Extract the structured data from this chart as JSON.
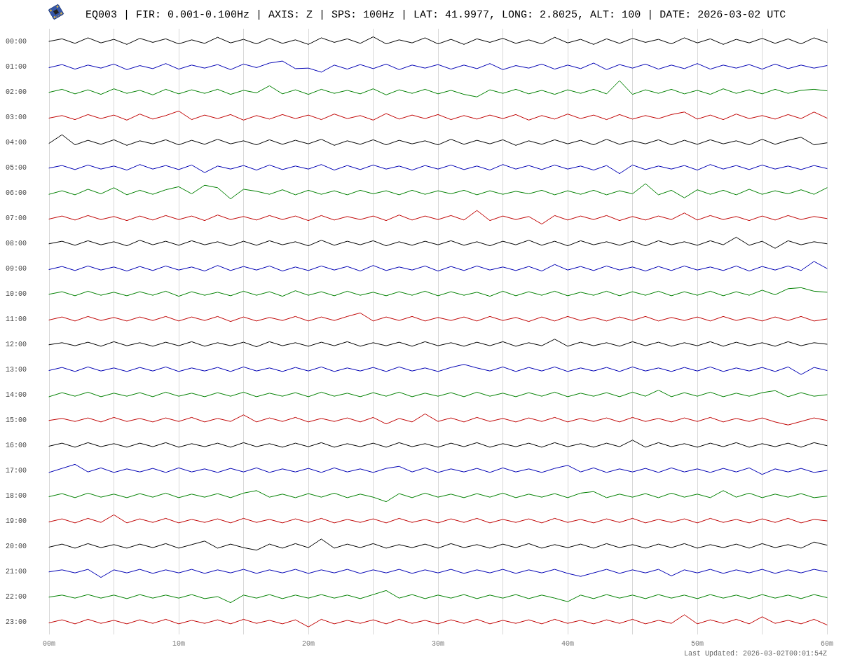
{
  "chart_data": {
    "type": "line",
    "title": "EQ003 | FIR: 0.001-0.100Hz | AXIS: Z | SPS: 100Hz | LAT: 41.9977, LONG: 2.8025, ALT: 100 | DATE: 2026-03-02 UTC",
    "annotations": [
      "Last Updated: 2026-03-02T00:01:54Z"
    ],
    "x": [
      0,
      1,
      2,
      3,
      4,
      5,
      6,
      7,
      8,
      9,
      10,
      11,
      12,
      13,
      14,
      15,
      16,
      17,
      18,
      19,
      20,
      21,
      22,
      23,
      24,
      25,
      26,
      27,
      28,
      29,
      30,
      31,
      32,
      33,
      34,
      35,
      36,
      37,
      38,
      39,
      40,
      41,
      42,
      43,
      44,
      45,
      46,
      47,
      48,
      49,
      50,
      51,
      52,
      53,
      54,
      55,
      56,
      57,
      58,
      59,
      60
    ],
    "xlim": [
      0,
      60
    ],
    "xticks": [
      {
        "value": 0,
        "label": "00m"
      },
      {
        "value": 5,
        "label": null
      },
      {
        "value": 10,
        "label": "10m"
      },
      {
        "value": 15,
        "label": null
      },
      {
        "value": 20,
        "label": "20m"
      },
      {
        "value": 25,
        "label": null
      },
      {
        "value": 30,
        "label": "30m"
      },
      {
        "value": 35,
        "label": null
      },
      {
        "value": 40,
        "label": "40m"
      },
      {
        "value": 45,
        "label": null
      },
      {
        "value": 50,
        "label": "50m"
      },
      {
        "value": 55,
        "label": null
      },
      {
        "value": 60,
        "label": "60m"
      }
    ],
    "ylim": [
      23.5,
      -0.5
    ],
    "yticks": [
      {
        "value": 0,
        "label": "00:00"
      },
      {
        "value": 1,
        "label": "01:00"
      },
      {
        "value": 2,
        "label": "02:00"
      },
      {
        "value": 3,
        "label": "03:00"
      },
      {
        "value": 4,
        "label": "04:00"
      },
      {
        "value": 5,
        "label": "05:00"
      },
      {
        "value": 6,
        "label": "06:00"
      },
      {
        "value": 7,
        "label": "07:00"
      },
      {
        "value": 8,
        "label": "08:00"
      },
      {
        "value": 9,
        "label": "09:00"
      },
      {
        "value": 10,
        "label": "10:00"
      },
      {
        "value": 11,
        "label": "11:00"
      },
      {
        "value": 12,
        "label": "12:00"
      },
      {
        "value": 13,
        "label": "13:00"
      },
      {
        "value": 14,
        "label": "14:00"
      },
      {
        "value": 15,
        "label": "15:00"
      },
      {
        "value": 16,
        "label": "16:00"
      },
      {
        "value": 17,
        "label": "17:00"
      },
      {
        "value": 18,
        "label": "18:00"
      },
      {
        "value": 19,
        "label": "19:00"
      },
      {
        "value": 20,
        "label": "20:00"
      },
      {
        "value": 21,
        "label": "21:00"
      },
      {
        "value": 22,
        "label": "22:00"
      },
      {
        "value": 23,
        "label": "23:00"
      }
    ],
    "grid": "x",
    "line_style": "solid",
    "series": [
      {
        "color": "#000000",
        "values": [
          0,
          -0.1,
          0.08,
          -0.14,
          0.06,
          -0.08,
          0.12,
          -0.12,
          0.04,
          -0.1,
          0.1,
          -0.06,
          0.08,
          -0.16,
          0.06,
          -0.08,
          0.1,
          -0.12,
          0.08,
          -0.06,
          0.12,
          -0.14,
          0.04,
          -0.1,
          0.08,
          -0.18,
          0.1,
          -0.06,
          0.06,
          -0.14,
          0.1,
          -0.08,
          0.12,
          -0.1,
          0.04,
          -0.12,
          0.08,
          -0.06,
          0.1,
          -0.16,
          0.06,
          -0.08,
          0.12,
          -0.1,
          0.08,
          -0.12,
          0.04,
          -0.08,
          0.1,
          -0.14,
          0.06,
          -0.1,
          0.12,
          -0.08,
          0.06,
          -0.12,
          0.08,
          -0.1,
          0.1,
          -0.14,
          0.04
        ]
      },
      {
        "color": "#0000b4",
        "values": [
          1.04,
          0.92,
          1.1,
          0.94,
          1.06,
          0.9,
          1.12,
          0.96,
          1.08,
          0.88,
          1.1,
          0.94,
          1.06,
          0.92,
          1.12,
          0.9,
          1.04,
          0.86,
          0.78,
          1.08,
          1.06,
          1.22,
          0.94,
          1.1,
          0.92,
          1.08,
          0.9,
          1.12,
          0.94,
          1.06,
          0.92,
          1.1,
          0.94,
          1.08,
          0.88,
          1.12,
          0.96,
          1.06,
          0.9,
          1.1,
          0.94,
          1.08,
          0.86,
          1.12,
          0.92,
          1.06,
          0.9,
          1.1,
          0.94,
          1.08,
          0.88,
          1.1,
          0.94,
          1.06,
          0.92,
          1.1,
          0.9,
          1.08,
          0.94,
          1.06,
          0.96
        ]
      },
      {
        "color": "#008000",
        "values": [
          2.02,
          1.9,
          2.08,
          1.92,
          2.1,
          1.88,
          2.06,
          1.94,
          2.12,
          1.9,
          2.08,
          1.92,
          2.06,
          1.9,
          2.1,
          1.94,
          2.04,
          1.76,
          2.08,
          1.92,
          2.1,
          1.9,
          2.06,
          1.94,
          2.08,
          1.88,
          2.12,
          1.92,
          2.06,
          1.9,
          2.08,
          1.94,
          2.1,
          2.2,
          1.92,
          2.06,
          1.9,
          2.08,
          1.94,
          2.1,
          1.92,
          2.06,
          1.9,
          2.08,
          1.56,
          2.1,
          1.92,
          2.06,
          1.9,
          2.08,
          1.94,
          2.1,
          1.88,
          2.06,
          1.92,
          2.08,
          1.9,
          2.06,
          1.94,
          1.9,
          1.96
        ]
      },
      {
        "color": "#c00000",
        "values": [
          3.04,
          2.94,
          3.1,
          2.9,
          3.06,
          2.92,
          3.12,
          2.88,
          3.08,
          2.94,
          2.76,
          3.1,
          2.92,
          3.06,
          2.9,
          3.12,
          2.94,
          3.08,
          2.9,
          3.06,
          2.92,
          3.1,
          2.88,
          3.06,
          2.94,
          3.12,
          2.86,
          3.08,
          2.92,
          3.06,
          2.9,
          3.1,
          2.94,
          3.08,
          2.92,
          3.06,
          2.9,
          3.12,
          2.94,
          3.08,
          2.88,
          3.06,
          2.92,
          3.1,
          2.9,
          3.08,
          2.94,
          3.06,
          2.9,
          2.8,
          3.08,
          2.92,
          3.1,
          2.88,
          3.06,
          2.94,
          3.08,
          2.9,
          3.06,
          2.8,
          3.04
        ]
      },
      {
        "color": "#000000",
        "values": [
          4.04,
          3.7,
          4.1,
          3.92,
          4.08,
          3.9,
          4.12,
          3.94,
          4.06,
          3.9,
          4.1,
          3.92,
          4.08,
          3.88,
          4.06,
          3.94,
          4.1,
          3.9,
          4.08,
          3.92,
          4.06,
          3.88,
          4.12,
          3.94,
          4.08,
          3.9,
          4.1,
          3.92,
          4.06,
          3.94,
          4.1,
          3.88,
          4.08,
          3.92,
          4.06,
          3.9,
          4.12,
          3.94,
          4.08,
          3.9,
          4.06,
          3.92,
          4.1,
          3.88,
          4.08,
          3.94,
          4.06,
          3.9,
          4.1,
          3.92,
          4.08,
          3.9,
          4.06,
          3.94,
          4.1,
          3.88,
          4.08,
          3.92,
          3.8,
          4.1,
          4.02
        ]
      },
      {
        "color": "#0000b4",
        "values": [
          5.02,
          4.92,
          5.08,
          4.9,
          5.06,
          4.94,
          5.1,
          4.88,
          5.06,
          4.92,
          5.08,
          4.9,
          5.2,
          4.94,
          5.06,
          4.92,
          5.1,
          4.9,
          5.08,
          4.94,
          5.06,
          4.88,
          5.1,
          4.92,
          5.08,
          4.9,
          5.06,
          4.94,
          5.1,
          4.92,
          5.06,
          4.9,
          5.08,
          4.94,
          5.1,
          4.88,
          5.06,
          4.92,
          5.08,
          4.9,
          5.06,
          4.94,
          5.1,
          4.92,
          5.24,
          4.9,
          5.08,
          4.94,
          5.06,
          4.92,
          5.1,
          4.88,
          5.06,
          4.92,
          5.08,
          4.9,
          5.06,
          4.94,
          5.08,
          4.92,
          5.04
        ]
      },
      {
        "color": "#008000",
        "values": [
          6.06,
          5.92,
          6.08,
          5.86,
          6.04,
          5.8,
          6.08,
          5.9,
          6.06,
          5.88,
          5.76,
          6.04,
          5.7,
          5.8,
          6.24,
          5.86,
          5.94,
          6.06,
          5.88,
          6.08,
          5.9,
          6.06,
          5.92,
          6.08,
          5.9,
          6.04,
          5.92,
          6.08,
          5.9,
          6.06,
          5.92,
          6.04,
          5.9,
          6.08,
          5.92,
          6.06,
          5.94,
          6.04,
          5.9,
          6.08,
          5.92,
          6.06,
          5.9,
          6.08,
          5.92,
          6.04,
          5.64,
          6.08,
          5.9,
          6.2,
          5.88,
          6.06,
          5.9,
          6.08,
          5.86,
          6.06,
          5.92,
          6.04,
          5.88,
          6.06,
          5.8
        ]
      },
      {
        "color": "#c00000",
        "values": [
          7.04,
          6.92,
          7.08,
          6.9,
          7.06,
          6.94,
          7.1,
          6.92,
          7.08,
          6.9,
          7.06,
          6.92,
          7.1,
          6.88,
          7.06,
          6.94,
          7.08,
          6.9,
          7.06,
          6.92,
          7.1,
          6.9,
          7.08,
          6.94,
          7.06,
          6.92,
          7.1,
          6.88,
          7.08,
          6.92,
          7.06,
          6.9,
          7.08,
          6.7,
          7.1,
          6.92,
          7.06,
          6.94,
          7.24,
          6.9,
          7.08,
          6.92,
          7.06,
          6.9,
          7.1,
          6.94,
          7.08,
          6.92,
          7.06,
          6.8,
          7.08,
          6.9,
          7.06,
          6.94,
          7.1,
          6.92,
          7.08,
          6.9,
          7.06,
          6.94,
          7.02
        ]
      },
      {
        "color": "#000000",
        "values": [
          8.02,
          7.92,
          8.08,
          7.9,
          8.06,
          7.94,
          8.1,
          7.88,
          8.06,
          7.92,
          8.08,
          7.9,
          8.06,
          7.94,
          8.1,
          7.92,
          8.08,
          7.9,
          8.06,
          7.94,
          8.1,
          7.88,
          8.08,
          7.92,
          8.06,
          7.9,
          8.1,
          7.94,
          8.08,
          7.92,
          8.06,
          7.9,
          8.08,
          7.94,
          8.1,
          7.92,
          8.06,
          7.88,
          8.08,
          7.92,
          8.1,
          7.9,
          8.06,
          7.94,
          8.08,
          7.92,
          8.1,
          7.9,
          8.06,
          7.94,
          8.08,
          7.9,
          8.06,
          7.76,
          8.08,
          7.92,
          8.2,
          7.9,
          8.06,
          7.94,
          8.02
        ]
      },
      {
        "color": "#0000b4",
        "values": [
          9.04,
          8.92,
          9.08,
          8.9,
          9.06,
          8.94,
          9.1,
          8.92,
          9.08,
          8.9,
          9.06,
          8.94,
          9.1,
          8.88,
          9.08,
          8.92,
          9.06,
          8.9,
          9.1,
          8.94,
          9.08,
          8.9,
          9.06,
          8.92,
          9.1,
          8.88,
          9.08,
          8.94,
          9.06,
          8.9,
          9.1,
          8.92,
          9.08,
          8.9,
          9.06,
          8.94,
          9.08,
          8.92,
          9.1,
          8.84,
          9.06,
          8.92,
          9.08,
          8.9,
          9.06,
          8.94,
          9.1,
          8.92,
          9.08,
          8.9,
          9.06,
          8.94,
          9.08,
          8.9,
          9.1,
          8.92,
          9.06,
          8.9,
          9.08,
          8.72,
          9.0
        ]
      },
      {
        "color": "#008000",
        "values": [
          10.02,
          9.92,
          10.08,
          9.9,
          10.06,
          9.94,
          10.08,
          9.92,
          10.06,
          9.9,
          10.1,
          9.92,
          10.06,
          9.94,
          10.08,
          9.9,
          10.06,
          9.92,
          10.1,
          9.88,
          10.06,
          9.92,
          10.08,
          9.9,
          10.06,
          9.94,
          10.08,
          9.92,
          10.06,
          9.9,
          10.08,
          9.92,
          10.06,
          9.94,
          10.1,
          9.9,
          10.08,
          9.92,
          10.06,
          9.9,
          10.08,
          9.94,
          10.06,
          9.9,
          10.08,
          9.92,
          10.06,
          9.9,
          10.08,
          9.92,
          10.06,
          9.9,
          10.08,
          9.92,
          10.06,
          9.86,
          10.04,
          9.8,
          9.76,
          9.9,
          9.94
        ]
      },
      {
        "color": "#c00000",
        "values": [
          11.04,
          10.92,
          11.08,
          10.9,
          11.06,
          10.94,
          11.08,
          10.92,
          11.06,
          10.9,
          11.08,
          10.92,
          11.06,
          10.9,
          11.1,
          10.92,
          11.08,
          10.94,
          11.06,
          10.9,
          11.08,
          10.92,
          11.06,
          10.9,
          10.76,
          11.08,
          10.92,
          11.06,
          10.9,
          11.08,
          10.94,
          11.06,
          10.92,
          11.08,
          10.9,
          11.06,
          10.94,
          11.1,
          10.92,
          11.08,
          10.9,
          11.06,
          10.94,
          11.08,
          10.92,
          11.06,
          10.9,
          11.08,
          10.94,
          11.06,
          10.92,
          11.08,
          10.9,
          11.06,
          10.94,
          11.08,
          10.92,
          11.06,
          10.9,
          11.08,
          11.0
        ]
      },
      {
        "color": "#000000",
        "values": [
          12.02,
          11.94,
          12.06,
          11.92,
          12.08,
          11.9,
          12.06,
          11.94,
          12.08,
          11.92,
          12.06,
          11.9,
          12.08,
          11.94,
          12.06,
          11.92,
          12.1,
          11.9,
          12.06,
          11.94,
          12.08,
          11.92,
          12.06,
          11.9,
          12.08,
          11.94,
          12.06,
          11.92,
          12.08,
          11.9,
          12.06,
          11.94,
          12.08,
          11.92,
          12.06,
          11.9,
          12.08,
          11.94,
          12.06,
          11.8,
          12.08,
          11.92,
          12.06,
          11.94,
          12.08,
          11.9,
          12.06,
          11.92,
          12.08,
          11.94,
          12.06,
          11.9,
          12.08,
          11.92,
          12.06,
          11.94,
          12.08,
          11.9,
          12.06,
          11.94,
          12.0
        ]
      },
      {
        "color": "#0000b4",
        "values": [
          13.04,
          12.92,
          13.08,
          12.9,
          13.06,
          12.94,
          13.08,
          12.92,
          13.06,
          12.9,
          13.08,
          12.94,
          13.06,
          12.92,
          13.08,
          12.9,
          13.06,
          12.94,
          13.08,
          12.92,
          13.06,
          12.9,
          13.08,
          12.94,
          13.06,
          12.92,
          13.08,
          12.9,
          13.06,
          12.94,
          13.08,
          12.92,
          12.8,
          12.94,
          13.06,
          12.9,
          13.08,
          12.92,
          13.06,
          12.9,
          13.08,
          12.94,
          13.06,
          12.92,
          13.08,
          12.9,
          13.06,
          12.94,
          13.08,
          12.92,
          13.06,
          12.9,
          13.08,
          12.94,
          13.06,
          12.92,
          13.08,
          12.9,
          13.2,
          12.92,
          13.04
        ]
      },
      {
        "color": "#008000",
        "values": [
          14.08,
          13.92,
          14.06,
          13.9,
          14.08,
          13.94,
          14.06,
          13.92,
          14.08,
          13.9,
          14.06,
          13.94,
          14.08,
          13.92,
          14.06,
          13.9,
          14.08,
          13.94,
          14.06,
          13.92,
          14.08,
          13.9,
          14.06,
          13.94,
          14.08,
          13.92,
          14.06,
          13.9,
          14.08,
          13.94,
          14.06,
          13.92,
          14.08,
          13.9,
          14.06,
          13.94,
          14.08,
          13.92,
          14.06,
          13.9,
          14.08,
          13.94,
          14.06,
          13.92,
          14.08,
          13.9,
          14.06,
          13.82,
          14.08,
          13.92,
          14.06,
          13.9,
          14.08,
          13.94,
          14.06,
          13.92,
          13.84,
          14.08,
          13.92,
          14.06,
          14.0
        ]
      },
      {
        "color": "#c00000",
        "values": [
          15.02,
          14.94,
          15.06,
          14.92,
          15.08,
          14.9,
          15.06,
          14.94,
          15.08,
          14.92,
          15.06,
          14.9,
          15.08,
          14.94,
          15.06,
          14.8,
          15.08,
          14.92,
          15.06,
          14.9,
          15.08,
          14.94,
          15.06,
          14.92,
          15.08,
          14.9,
          15.16,
          14.94,
          15.08,
          14.76,
          15.06,
          14.92,
          15.08,
          14.9,
          15.06,
          14.94,
          15.08,
          14.92,
          15.06,
          14.9,
          15.08,
          14.94,
          15.06,
          14.92,
          15.08,
          14.9,
          15.06,
          14.94,
          15.08,
          14.92,
          15.06,
          14.9,
          15.08,
          14.94,
          15.06,
          14.92,
          15.08,
          15.2,
          15.06,
          14.92,
          15.02
        ]
      },
      {
        "color": "#000000",
        "values": [
          16.04,
          15.92,
          16.08,
          15.9,
          16.06,
          15.94,
          16.08,
          15.92,
          16.06,
          15.9,
          16.08,
          15.94,
          16.06,
          15.92,
          16.08,
          15.9,
          16.06,
          15.94,
          16.08,
          15.92,
          16.06,
          15.9,
          16.08,
          15.94,
          16.06,
          15.92,
          16.08,
          15.9,
          16.06,
          15.94,
          16.08,
          15.92,
          16.06,
          15.9,
          16.08,
          15.94,
          16.06,
          15.92,
          16.08,
          15.9,
          16.06,
          15.94,
          16.08,
          15.92,
          16.06,
          15.8,
          16.08,
          15.9,
          16.06,
          15.94,
          16.08,
          15.92,
          16.06,
          15.9,
          16.08,
          15.94,
          16.06,
          15.92,
          16.08,
          15.9,
          16.02
        ]
      },
      {
        "color": "#0000b4",
        "values": [
          17.08,
          16.92,
          16.76,
          17.06,
          16.9,
          17.08,
          16.94,
          17.06,
          16.92,
          17.08,
          16.9,
          17.06,
          16.94,
          17.08,
          16.92,
          17.06,
          16.9,
          17.08,
          16.94,
          17.06,
          16.92,
          17.08,
          16.9,
          17.06,
          16.94,
          17.08,
          16.92,
          16.84,
          17.06,
          16.9,
          17.08,
          16.94,
          17.06,
          16.92,
          17.08,
          16.9,
          17.06,
          16.94,
          17.08,
          16.92,
          16.8,
          17.06,
          16.9,
          17.08,
          16.94,
          17.06,
          16.92,
          17.08,
          16.9,
          17.06,
          16.94,
          17.08,
          16.92,
          17.06,
          16.9,
          17.16,
          16.94,
          17.06,
          16.92,
          17.08,
          17.0
        ]
      },
      {
        "color": "#008000",
        "values": [
          18.04,
          17.92,
          18.08,
          17.9,
          18.06,
          17.94,
          18.08,
          17.92,
          18.06,
          17.9,
          18.08,
          17.94,
          18.06,
          17.92,
          18.08,
          17.9,
          17.8,
          18.06,
          17.94,
          18.08,
          17.92,
          18.06,
          17.9,
          18.08,
          17.94,
          18.06,
          18.24,
          17.92,
          18.08,
          17.9,
          18.06,
          17.94,
          18.08,
          17.92,
          18.06,
          17.9,
          18.08,
          17.94,
          18.06,
          17.92,
          18.08,
          17.9,
          17.84,
          18.08,
          17.94,
          18.06,
          17.92,
          18.08,
          17.9,
          18.06,
          17.94,
          18.08,
          17.8,
          18.06,
          17.9,
          18.08,
          17.94,
          18.06,
          17.92,
          18.08,
          18.02
        ]
      },
      {
        "color": "#c00000",
        "values": [
          19.04,
          18.92,
          19.08,
          18.9,
          19.06,
          18.76,
          19.08,
          18.92,
          19.06,
          18.9,
          19.08,
          18.94,
          19.06,
          18.92,
          19.08,
          18.9,
          19.06,
          18.94,
          19.08,
          18.92,
          19.06,
          18.9,
          19.08,
          18.94,
          19.06,
          18.92,
          19.08,
          18.9,
          19.06,
          18.94,
          19.08,
          18.92,
          19.06,
          18.9,
          19.08,
          18.94,
          19.06,
          18.92,
          19.08,
          18.9,
          19.06,
          18.94,
          19.08,
          18.92,
          19.06,
          18.9,
          19.08,
          18.94,
          19.06,
          18.92,
          19.08,
          18.9,
          19.06,
          18.94,
          19.08,
          18.92,
          19.06,
          18.9,
          19.08,
          18.94,
          19.0
        ]
      },
      {
        "color": "#000000",
        "values": [
          20.04,
          19.92,
          20.08,
          19.9,
          20.06,
          19.94,
          20.08,
          19.92,
          20.06,
          19.9,
          20.08,
          19.94,
          19.8,
          20.08,
          19.92,
          20.06,
          20.16,
          19.92,
          20.08,
          19.9,
          20.06,
          19.72,
          20.08,
          19.92,
          20.06,
          19.9,
          20.08,
          19.94,
          20.06,
          19.92,
          20.08,
          19.9,
          20.06,
          19.94,
          20.08,
          19.92,
          20.06,
          19.9,
          20.08,
          19.94,
          20.06,
          19.92,
          20.08,
          19.9,
          20.06,
          19.94,
          20.08,
          19.92,
          20.06,
          19.9,
          20.08,
          19.94,
          20.06,
          19.92,
          20.08,
          19.9,
          20.06,
          19.94,
          20.08,
          19.84,
          19.96
        ]
      },
      {
        "color": "#0000b4",
        "values": [
          21.02,
          20.94,
          21.06,
          20.92,
          21.24,
          20.94,
          21.06,
          20.92,
          21.08,
          20.94,
          21.06,
          20.92,
          21.08,
          20.94,
          21.06,
          20.92,
          21.08,
          20.94,
          21.06,
          20.92,
          21.08,
          20.94,
          21.06,
          20.92,
          21.08,
          20.94,
          21.06,
          20.92,
          21.08,
          20.94,
          21.06,
          20.92,
          21.08,
          20.94,
          21.06,
          20.92,
          21.08,
          20.94,
          21.06,
          20.92,
          21.08,
          21.2,
          21.06,
          20.92,
          21.08,
          20.94,
          21.06,
          20.92,
          21.18,
          20.94,
          21.06,
          20.92,
          21.08,
          20.94,
          21.06,
          20.92,
          21.08,
          20.94,
          21.06,
          20.92,
          21.02
        ]
      },
      {
        "color": "#008000",
        "values": [
          22.02,
          21.94,
          22.06,
          21.92,
          22.06,
          21.94,
          22.08,
          21.92,
          22.06,
          21.94,
          22.06,
          21.92,
          22.08,
          22.0,
          22.24,
          21.94,
          22.06,
          21.92,
          22.08,
          21.94,
          22.06,
          21.92,
          22.06,
          21.94,
          22.08,
          21.92,
          21.76,
          22.06,
          21.92,
          22.08,
          21.94,
          22.06,
          21.92,
          22.08,
          21.94,
          22.06,
          21.92,
          22.08,
          21.94,
          22.06,
          22.2,
          21.94,
          22.08,
          21.92,
          22.06,
          21.94,
          22.08,
          21.92,
          22.06,
          21.94,
          22.08,
          21.92,
          22.06,
          21.94,
          22.08,
          21.92,
          22.06,
          21.94,
          22.08,
          21.92,
          22.04
        ]
      },
      {
        "color": "#c00000",
        "values": [
          23.04,
          22.92,
          23.08,
          22.9,
          23.06,
          22.94,
          23.08,
          22.92,
          23.06,
          22.9,
          23.08,
          22.94,
          23.06,
          22.92,
          23.08,
          22.9,
          23.06,
          22.94,
          23.08,
          22.92,
          23.2,
          22.9,
          23.08,
          22.94,
          23.06,
          22.92,
          23.08,
          22.9,
          23.06,
          22.94,
          23.08,
          22.92,
          23.06,
          22.9,
          23.08,
          22.94,
          23.06,
          22.92,
          23.08,
          22.9,
          23.06,
          22.94,
          23.08,
          22.92,
          23.06,
          22.9,
          23.08,
          22.94,
          23.06,
          22.72,
          23.08,
          22.92,
          23.06,
          22.9,
          23.08,
          22.8,
          23.06,
          22.94,
          23.08,
          22.9,
          23.12
        ]
      }
    ]
  }
}
